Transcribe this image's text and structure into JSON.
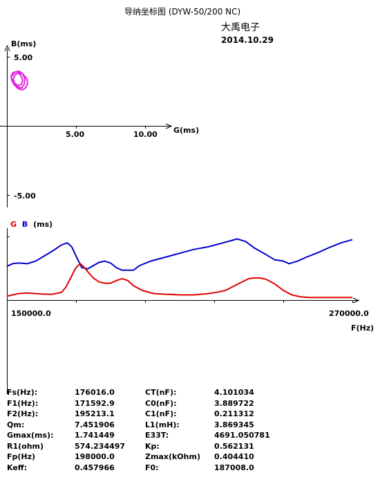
{
  "header": {
    "title": "导纳坐标图  (DYW-50/200 NC)",
    "brand": "大禹电子",
    "date": "2014.10.29"
  },
  "chart_data": [
    {
      "type": "scatter",
      "title": "",
      "xlabel": "G(ms)",
      "ylabel": "B(ms)",
      "x_ticks": [
        "5.00",
        "10.00"
      ],
      "y_ticks": [
        "5.00",
        "-5.00"
      ],
      "xlim": [
        0,
        12
      ],
      "ylim": [
        -5.5,
        5.5
      ],
      "series": [
        {
          "color": "#e020e0",
          "x": [
            0.35,
            0.6,
            0.9,
            1.15,
            1.3,
            1.25,
            1.05,
            0.8,
            0.55,
            0.45,
            0.6,
            0.9,
            1.2,
            1.45,
            1.5,
            1.35,
            1.1,
            0.8,
            0.55,
            0.35,
            0.3,
            0.45,
            0.75,
            1.0,
            1.15,
            1.05,
            0.8,
            0.55,
            0.4
          ],
          "y": [
            3.6,
            3.9,
            3.95,
            3.75,
            3.4,
            3.0,
            2.75,
            2.8,
            3.05,
            3.4,
            3.7,
            3.85,
            3.7,
            3.4,
            3.05,
            2.75,
            2.6,
            2.7,
            2.95,
            3.3,
            3.6,
            3.85,
            3.9,
            3.65,
            3.3,
            3.0,
            2.9,
            3.1,
            3.4
          ]
        }
      ]
    },
    {
      "type": "line",
      "title": "",
      "ylabel_g": "G",
      "ylabel_b": "B",
      "ylabel_unit": "(ms)",
      "xlabel": "F(Hz)",
      "x_ticks": [
        "150000.0",
        "270000.0"
      ],
      "xlim": [
        150000,
        270000
      ],
      "ylim": [
        0,
        1
      ],
      "series": [
        {
          "name": "G",
          "color": "#e00000",
          "x": [
            150000,
            152000,
            154000,
            157000,
            160000,
            163000,
            166000,
            169000,
            170500,
            172000,
            174000,
            175500,
            176500,
            178000,
            180000,
            182000,
            184000,
            186000,
            188000,
            190000,
            192000,
            194000,
            197000,
            201000,
            205000,
            210000,
            215000,
            220000,
            223000,
            226000,
            230000,
            234000,
            236000,
            238000,
            240000,
            243000,
            246000,
            249000,
            252000,
            255000,
            260000,
            265000,
            270000
          ],
          "y": [
            0.06,
            0.08,
            0.1,
            0.11,
            0.1,
            0.09,
            0.09,
            0.12,
            0.2,
            0.33,
            0.5,
            0.56,
            0.52,
            0.44,
            0.34,
            0.28,
            0.26,
            0.26,
            0.3,
            0.33,
            0.3,
            0.22,
            0.15,
            0.1,
            0.09,
            0.08,
            0.08,
            0.1,
            0.12,
            0.15,
            0.24,
            0.33,
            0.34,
            0.34,
            0.32,
            0.25,
            0.15,
            0.08,
            0.05,
            0.04,
            0.04,
            0.04,
            0.04
          ]
        },
        {
          "name": "B",
          "color": "#0000cc",
          "x": [
            150000,
            152000,
            154000,
            157000,
            160000,
            163000,
            166000,
            169000,
            171000,
            172500,
            174000,
            176000,
            178000,
            180000,
            182000,
            184000,
            186000,
            188000,
            190000,
            192000,
            194000,
            196000,
            200000,
            205000,
            210000,
            215000,
            220000,
            225000,
            230000,
            233000,
            236000,
            240000,
            243000,
            246000,
            248000,
            251000,
            254000,
            258000,
            262000,
            266000,
            270000
          ],
          "y": [
            0.52,
            0.56,
            0.57,
            0.56,
            0.6,
            0.68,
            0.76,
            0.85,
            0.88,
            0.82,
            0.68,
            0.5,
            0.48,
            0.53,
            0.58,
            0.6,
            0.57,
            0.5,
            0.46,
            0.46,
            0.46,
            0.53,
            0.6,
            0.66,
            0.72,
            0.78,
            0.82,
            0.88,
            0.94,
            0.9,
            0.8,
            0.7,
            0.62,
            0.6,
            0.56,
            0.6,
            0.66,
            0.73,
            0.81,
            0.88,
            0.93
          ]
        }
      ]
    }
  ],
  "params": [
    {
      "k1": "Fs(Hz):",
      "v1": "176016.0",
      "k2": "CT(nF):",
      "v2": "4.101034"
    },
    {
      "k1": "F1(Hz):",
      "v1": "171592.9",
      "k2": "C0(nF):",
      "v2": "3.889722"
    },
    {
      "k1": "F2(Hz):",
      "v1": "195213.1",
      "k2": "C1(nF):",
      "v2": "0.211312"
    },
    {
      "k1": "Qm:",
      "v1": "7.451906",
      "k2": "L1(mH):",
      "v2": "3.869345"
    },
    {
      "k1": "Gmax(ms):",
      "v1": "1.741449",
      "k2": "E33T:",
      "v2": "4691.050781"
    },
    {
      "k1": "R1(ohm)",
      "v1": "574.234497",
      "k2": "Kp:",
      "v2": "0.562131"
    },
    {
      "k1": "Fp(Hz)",
      "v1": "198000.0",
      "k2": "Zmax(kOhm)",
      "v2": "0.404410"
    },
    {
      "k1": "Keff:",
      "v1": "0.457966",
      "k2": "F0:",
      "v2": "187008.0"
    }
  ]
}
